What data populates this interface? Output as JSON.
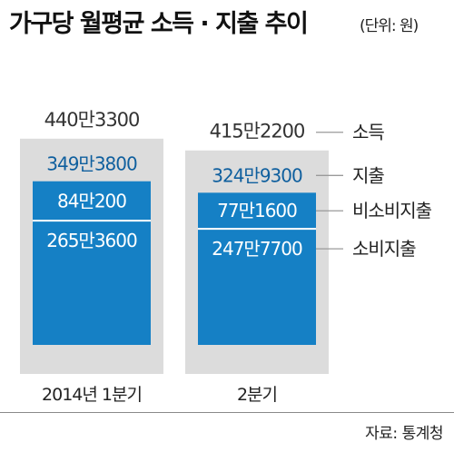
{
  "title": "가구당 월평균 소득 · 지출 추이",
  "unit": "(단위: 원)",
  "source": "자료: 통계청",
  "colors": {
    "bar_bg": "#dcdcdc",
    "segment": "#1580c5",
    "segment_border": "#ffffff",
    "expense_text": "#0f5f9e",
    "income_text": "#333333"
  },
  "chart_data": {
    "type": "bar",
    "stacked": true,
    "unit": "원",
    "categories": [
      "2014년 1분기",
      "2분기"
    ],
    "series": [
      {
        "name": "소비지출",
        "values": [
          2653600,
          2477700
        ],
        "labels": [
          "265만3600",
          "247만7700"
        ]
      },
      {
        "name": "비소비지출",
        "values": [
          840200,
          771600
        ],
        "labels": [
          "84만200",
          "77만1600"
        ]
      }
    ],
    "totals": {
      "지출": {
        "values": [
          3493800,
          3249300
        ],
        "labels": [
          "349만3800",
          "324만9300"
        ]
      },
      "소득": {
        "values": [
          4403300,
          4152200
        ],
        "labels": [
          "440만3300",
          "415만2200"
        ]
      }
    },
    "legend": [
      "소득",
      "지출",
      "비소비지출",
      "소비지출"
    ],
    "legend_position": "right"
  }
}
